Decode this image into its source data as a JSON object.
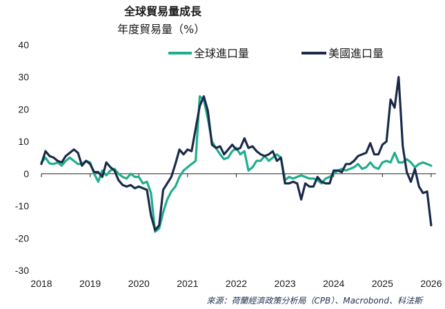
{
  "chart_data": {
    "type": "line",
    "title": "全球貿易量成長",
    "subtitle": "年度貿易量（%）",
    "xlabel": "",
    "ylabel": "",
    "ylim": [
      -30,
      40
    ],
    "yticks": [
      -30,
      -20,
      -10,
      0,
      10,
      20,
      30,
      40
    ],
    "xlim": [
      2018,
      2026.1
    ],
    "xticks": [
      2018,
      2019,
      2020,
      2021,
      2022,
      2023,
      2024,
      2025,
      2026
    ],
    "legend_placement": "top",
    "grid": false,
    "series": [
      {
        "name": "全球進口量",
        "color": "#1fae8c",
        "x": [
          2018.0,
          2018.083,
          2018.167,
          2018.25,
          2018.333,
          2018.417,
          2018.5,
          2018.583,
          2018.667,
          2018.75,
          2018.833,
          2018.917,
          2019.0,
          2019.083,
          2019.167,
          2019.25,
          2019.333,
          2019.417,
          2019.5,
          2019.583,
          2019.667,
          2019.75,
          2019.833,
          2019.917,
          2020.0,
          2020.083,
          2020.167,
          2020.25,
          2020.333,
          2020.417,
          2020.5,
          2020.583,
          2020.667,
          2020.75,
          2020.833,
          2020.917,
          2021.0,
          2021.083,
          2021.167,
          2021.25,
          2021.333,
          2021.417,
          2021.5,
          2021.583,
          2021.667,
          2021.75,
          2021.833,
          2021.917,
          2022.0,
          2022.083,
          2022.167,
          2022.25,
          2022.333,
          2022.417,
          2022.5,
          2022.583,
          2022.667,
          2022.75,
          2022.833,
          2022.917,
          2023.0,
          2023.083,
          2023.167,
          2023.25,
          2023.333,
          2023.417,
          2023.5,
          2023.583,
          2023.667,
          2023.75,
          2023.833,
          2023.917,
          2024.0,
          2024.083,
          2024.167,
          2024.25,
          2024.333,
          2024.417,
          2024.5,
          2024.583,
          2024.667,
          2024.75,
          2024.833,
          2024.917,
          2025.0,
          2025.083,
          2025.167,
          2025.25,
          2025.333,
          2025.417,
          2025.5,
          2025.583,
          2025.667,
          2025.75,
          2025.833,
          2025.917,
          2026.0
        ],
        "values": [
          3.5,
          5.0,
          3.2,
          3.0,
          3.5,
          2.5,
          4.0,
          5.0,
          4.0,
          3.0,
          3.0,
          4.0,
          3.5,
          0.0,
          -2.5,
          1.0,
          -0.5,
          1.0,
          1.5,
          0.0,
          -1.0,
          -1.5,
          0.0,
          -1.0,
          -1.0,
          -3.0,
          -2.5,
          -6.0,
          -18.0,
          -17.0,
          -12.0,
          -8.0,
          -5.5,
          -4.0,
          -1.0,
          1.0,
          2.0,
          3.0,
          4.0,
          24.0,
          23.0,
          17.0,
          10.0,
          8.0,
          6.0,
          4.5,
          5.0,
          7.0,
          8.0,
          6.0,
          7.0,
          1.0,
          2.0,
          4.0,
          4.0,
          5.5,
          4.0,
          5.0,
          6.0,
          5.0,
          -2.0,
          -1.0,
          -1.5,
          -1.0,
          -0.5,
          -1.0,
          -1.5,
          -1.5,
          -2.0,
          -3.0,
          -1.5,
          -1.0,
          0.0,
          1.0,
          1.5,
          1.0,
          1.5,
          2.0,
          3.0,
          1.5,
          2.0,
          3.5,
          2.0,
          1.5,
          3.5,
          4.0,
          3.5,
          6.5,
          3.5,
          3.5,
          4.5,
          3.5,
          2.0,
          3.0,
          3.5,
          3.0,
          2.5
        ]
      },
      {
        "name": "美國進口量",
        "color": "#1b2a4a",
        "x": [
          2018.0,
          2018.083,
          2018.167,
          2018.25,
          2018.333,
          2018.417,
          2018.5,
          2018.583,
          2018.667,
          2018.75,
          2018.833,
          2018.917,
          2019.0,
          2019.083,
          2019.167,
          2019.25,
          2019.333,
          2019.417,
          2019.5,
          2019.583,
          2019.667,
          2019.75,
          2019.833,
          2019.917,
          2020.0,
          2020.083,
          2020.167,
          2020.25,
          2020.333,
          2020.417,
          2020.5,
          2020.583,
          2020.667,
          2020.75,
          2020.833,
          2020.917,
          2021.0,
          2021.083,
          2021.167,
          2021.25,
          2021.333,
          2021.417,
          2021.5,
          2021.583,
          2021.667,
          2021.75,
          2021.833,
          2021.917,
          2022.0,
          2022.083,
          2022.167,
          2022.25,
          2022.333,
          2022.417,
          2022.5,
          2022.583,
          2022.667,
          2022.75,
          2022.833,
          2022.917,
          2023.0,
          2023.083,
          2023.167,
          2023.25,
          2023.333,
          2023.417,
          2023.5,
          2023.583,
          2023.667,
          2023.75,
          2023.833,
          2023.917,
          2024.0,
          2024.083,
          2024.167,
          2024.25,
          2024.333,
          2024.417,
          2024.5,
          2024.583,
          2024.667,
          2024.75,
          2024.833,
          2024.917,
          2025.0,
          2025.083,
          2025.167,
          2025.25,
          2025.333,
          2025.417,
          2025.5,
          2025.583,
          2025.667,
          2025.75,
          2025.833,
          2025.917,
          2026.0
        ],
        "values": [
          3.0,
          7.0,
          5.5,
          5.0,
          4.0,
          3.5,
          5.5,
          6.5,
          7.5,
          6.5,
          2.5,
          4.0,
          3.0,
          0.5,
          0.5,
          -1.0,
          3.5,
          2.0,
          1.0,
          -2.0,
          -3.5,
          -4.0,
          -3.5,
          -4.5,
          -4.0,
          -4.5,
          -5.0,
          -13.0,
          -17.5,
          -16.0,
          -5.0,
          -3.0,
          -1.0,
          3.0,
          7.5,
          6.0,
          7.5,
          7.0,
          14.0,
          21.0,
          24.0,
          19.5,
          9.0,
          8.0,
          8.5,
          6.0,
          7.5,
          9.0,
          7.5,
          8.0,
          11.0,
          8.0,
          8.5,
          7.0,
          6.0,
          5.5,
          6.0,
          7.0,
          4.0,
          5.0,
          -3.0,
          -3.0,
          -2.5,
          -3.0,
          -8.0,
          -3.0,
          -4.0,
          -4.0,
          -1.0,
          -2.5,
          -3.0,
          -3.0,
          1.0,
          1.0,
          0.5,
          3.0,
          3.0,
          4.0,
          5.5,
          6.0,
          6.5,
          9.5,
          6.0,
          6.0,
          9.0,
          10.0,
          23.0,
          20.5,
          30.0,
          8.5,
          0.5,
          -2.5,
          1.5,
          -4.0,
          -6.0,
          -5.5,
          -16.0
        ]
      }
    ],
    "source": "來源：荷蘭經濟政策分析局（CPB）、Macrobond、科法斯"
  }
}
